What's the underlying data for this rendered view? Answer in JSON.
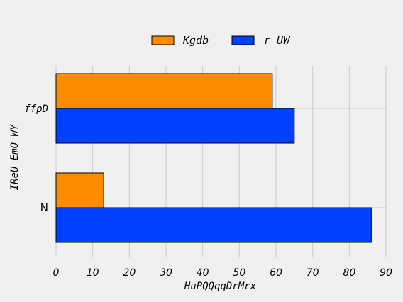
{
  "chart_data": {
    "type": "bar",
    "orientation": "horizontal",
    "categories": [
      "N",
      "ffpD"
    ],
    "series": [
      {
        "name": "Kgdb",
        "values": [
          13,
          59
        ],
        "color": "#ff8c00"
      },
      {
        "name": "r UW",
        "values": [
          86,
          65
        ],
        "color": "#0040ff"
      }
    ],
    "xlabel": "HuPQQqqDrMrx",
    "ylabel": "IReU EmQ WY",
    "xlim": [
      0,
      90
    ],
    "xticks": [
      0,
      10,
      20,
      30,
      40,
      50,
      60,
      70,
      80,
      90
    ],
    "grid": true,
    "legend_position": "top-center",
    "background": "#f0f0f0",
    "grid_color": "#cbcbcb"
  }
}
